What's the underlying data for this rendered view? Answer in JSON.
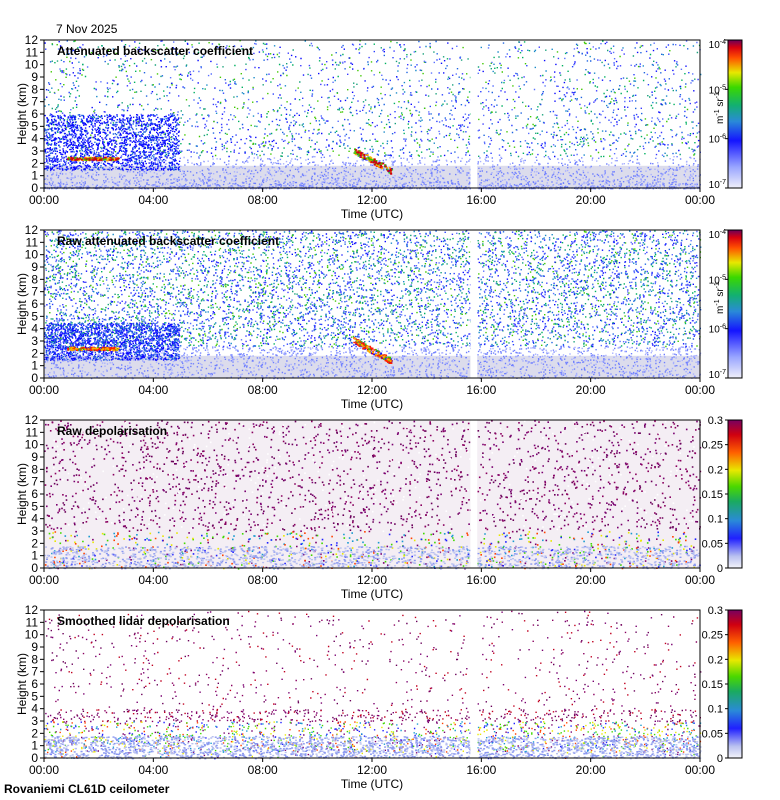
{
  "date_label": "7 Nov 2025",
  "footer": "Rovaniemi CL61D ceilometer",
  "chart_data": [
    {
      "type": "heatmap",
      "title": "Attenuated backscatter coefficient",
      "xlabel": "Time (UTC)",
      "ylabel": "Height (km)",
      "x_ticks": [
        "00:00",
        "04:00",
        "08:00",
        "12:00",
        "16:00",
        "20:00",
        "00:00"
      ],
      "x_range_hours": [
        0,
        24
      ],
      "ylim": [
        0,
        12
      ],
      "y_ticks": [
        0,
        1,
        2,
        3,
        4,
        5,
        6,
        7,
        8,
        9,
        10,
        11,
        12
      ],
      "data_gap_hours": [
        15.6,
        15.85
      ],
      "colorbar": {
        "scale": "log",
        "range": [
          1e-07,
          0.0001
        ],
        "tick_base": "10",
        "tick_exponents": [
          "-7",
          "-6",
          "-5",
          "-4"
        ],
        "unit_parts": [
          "m",
          "-1",
          " sr",
          "-1"
        ]
      },
      "features": [
        {
          "kind": "cloud layer",
          "time_hours": [
            0.8,
            2.7
          ],
          "height_km": [
            2.3,
            2.5
          ]
        },
        {
          "kind": "cloud layer",
          "time_hours": [
            11.3,
            12.7
          ],
          "height_km": [
            1.3,
            3.1
          ]
        }
      ]
    },
    {
      "type": "heatmap",
      "title": "Raw attenuated backscatter coefficient",
      "xlabel": "Time (UTC)",
      "ylabel": "Height (km)",
      "x_ticks": [
        "00:00",
        "04:00",
        "08:00",
        "12:00",
        "16:00",
        "20:00",
        "00:00"
      ],
      "x_range_hours": [
        0,
        24
      ],
      "ylim": [
        0,
        12
      ],
      "y_ticks": [
        0,
        1,
        2,
        3,
        4,
        5,
        6,
        7,
        8,
        9,
        10,
        11,
        12
      ],
      "data_gap_hours": [
        15.6,
        15.85
      ],
      "colorbar": {
        "scale": "log",
        "range": [
          1e-07,
          0.0001
        ],
        "tick_base": "10",
        "tick_exponents": [
          "-7",
          "-6",
          "-5",
          "-4"
        ],
        "unit_parts": [
          "m",
          "-1",
          " sr",
          "-1"
        ]
      },
      "features": [
        {
          "kind": "cloud layer",
          "time_hours": [
            0.8,
            2.7
          ],
          "height_km": [
            2.3,
            2.5
          ]
        },
        {
          "kind": "cloud layer",
          "time_hours": [
            11.3,
            12.7
          ],
          "height_km": [
            1.3,
            3.1
          ]
        }
      ]
    },
    {
      "type": "heatmap",
      "title": "Raw depolarisation",
      "xlabel": "Time (UTC)",
      "ylabel": "Height (km)",
      "x_ticks": [
        "00:00",
        "04:00",
        "08:00",
        "12:00",
        "16:00",
        "20:00",
        "00:00"
      ],
      "x_range_hours": [
        0,
        24
      ],
      "ylim": [
        0,
        12
      ],
      "y_ticks": [
        0,
        1,
        2,
        3,
        4,
        5,
        6,
        7,
        8,
        9,
        10,
        11,
        12
      ],
      "data_gap_hours": [
        15.6,
        15.85
      ],
      "colorbar": {
        "scale": "linear",
        "range": [
          0,
          0.3
        ],
        "tick_labels": [
          "0",
          "0.05",
          "0.1",
          "0.15",
          "0.2",
          "0.25",
          "0.3"
        ]
      }
    },
    {
      "type": "heatmap",
      "title": "Smoothed lidar depolarisation",
      "xlabel": "Time (UTC)",
      "ylabel": "Height (km)",
      "x_ticks": [
        "00:00",
        "04:00",
        "08:00",
        "12:00",
        "16:00",
        "20:00",
        "00:00"
      ],
      "x_range_hours": [
        0,
        24
      ],
      "ylim": [
        0,
        12
      ],
      "y_ticks": [
        0,
        1,
        2,
        3,
        4,
        5,
        6,
        7,
        8,
        9,
        10,
        11,
        12
      ],
      "data_gap_hours": [
        15.6,
        15.85
      ],
      "colorbar": {
        "scale": "linear",
        "range": [
          0,
          0.3
        ],
        "tick_labels": [
          "0",
          "0.05",
          "0.1",
          "0.15",
          "0.2",
          "0.25",
          "0.3"
        ]
      }
    }
  ]
}
